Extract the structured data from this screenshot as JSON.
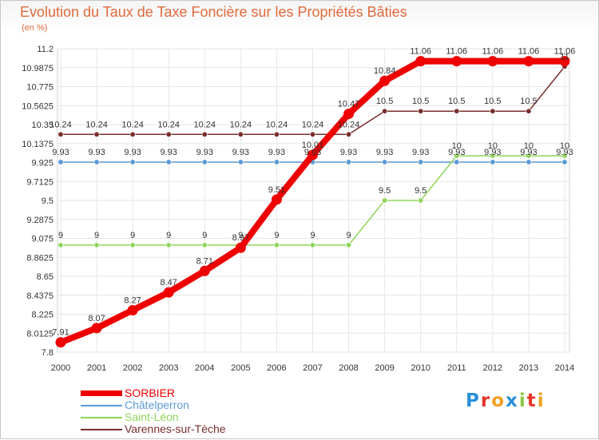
{
  "chart_data": {
    "type": "line",
    "title": "Evolution du Taux de Taxe Foncière sur les Propriétés Bâties",
    "subtitle": "(en %)",
    "xlabel": "",
    "ylabel": "",
    "categories": [
      "2000",
      "2001",
      "2002",
      "2003",
      "2004",
      "2005",
      "2006",
      "2007",
      "2008",
      "2009",
      "2010",
      "2011",
      "2012",
      "2013",
      "2014"
    ],
    "y_ticks": [
      "7.8",
      "8.0125",
      "8.225",
      "8.4375",
      "8.65",
      "8.8625",
      "9.075",
      "9.2875",
      "9.5",
      "9.7125",
      "9.925",
      "10.1375",
      "10.35",
      "10.5625",
      "10.775",
      "10.9875",
      "11.2"
    ],
    "ylim": [
      7.8,
      11.2
    ],
    "grid": true,
    "series": [
      {
        "name": "SORBIER",
        "color": "#ee0000",
        "thick": true,
        "values": [
          7.91,
          8.07,
          8.27,
          8.47,
          8.71,
          8.97,
          9.51,
          10.01,
          10.47,
          10.84,
          11.06,
          11.06,
          11.06,
          11.06,
          11.06
        ],
        "labels": [
          "7.91",
          "8.07",
          "8.27",
          "8.47",
          "8.71",
          "8.97",
          "9.51",
          "10.01",
          "10.47",
          "10.84",
          "11.06",
          "11.06",
          "11.06",
          "11.06",
          "11.06"
        ]
      },
      {
        "name": "Châtelperron",
        "color": "#5b9bd5",
        "values": [
          9.93,
          9.93,
          9.93,
          9.93,
          9.93,
          9.93,
          9.93,
          9.93,
          9.93,
          9.93,
          9.93,
          9.93,
          9.93,
          9.93,
          9.93
        ],
        "labels": [
          "9.93",
          "9.93",
          "9.93",
          "9.93",
          "9.93",
          "9.93",
          "9.93",
          "9.93",
          "9.93",
          "9.93",
          "9.93",
          "9.93",
          "9.93",
          "9.93",
          "9.93"
        ]
      },
      {
        "name": "Saint-Léon",
        "color": "#8fd45b",
        "values": [
          9,
          9,
          9,
          9,
          9,
          9,
          9,
          9,
          9,
          9.5,
          9.5,
          10,
          10,
          10,
          10
        ],
        "labels": [
          "9",
          "9",
          "9",
          "9",
          "9",
          "9",
          "9",
          "9",
          "9",
          "9.5",
          "9.5",
          "10",
          "10",
          "10",
          "10"
        ]
      },
      {
        "name": "Varennes-sur-Tèche",
        "color": "#7a2c2c",
        "values": [
          10.24,
          10.24,
          10.24,
          10.24,
          10.24,
          10.24,
          10.24,
          10.24,
          10.24,
          10.5,
          10.5,
          10.5,
          10.5,
          10.5,
          11
        ],
        "labels": [
          "10.24",
          "10.24",
          "10.24",
          "10.24",
          "10.24",
          "10.24",
          "10.24",
          "10.24",
          "10.24",
          "10.5",
          "10.5",
          "10.5",
          "10.5",
          "10.5",
          "11"
        ]
      }
    ]
  },
  "logo": {
    "letters": [
      "P",
      "r",
      "o",
      "x",
      "i",
      "t",
      "i"
    ],
    "colors": [
      "#2b8fd8",
      "#e8342a",
      "#f0a020",
      "#2b8fd8",
      "#8cc63f",
      "#e8342a",
      "#f0a020"
    ]
  }
}
